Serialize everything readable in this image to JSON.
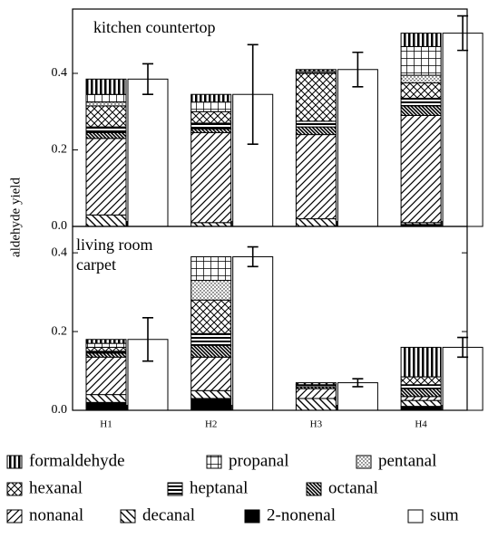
{
  "chart_data": [
    {
      "type": "stacked-bar-with-sum",
      "label_lines": [
        "kitchen countertop"
      ],
      "y_label": "aldehyde yield",
      "ylim": [
        0,
        0.568
      ],
      "yticks": [
        {
          "value": 0,
          "label": "0.0"
        },
        0.2,
        0.4
      ],
      "series": [
        {
          "name": "2-nonenal",
          "pattern": "solid",
          "values": [
            0,
            0,
            0,
            0.005
          ]
        },
        {
          "name": "decanal",
          "pattern": "backslash",
          "values": [
            0.03,
            0.01,
            0.02,
            0.005
          ]
        },
        {
          "name": "nonanal",
          "pattern": "slash",
          "values": [
            0.2,
            0.235,
            0.22,
            0.28
          ]
        },
        {
          "name": "octanal",
          "pattern": "dense-backslash",
          "values": [
            0.015,
            0.01,
            0.02,
            0.025
          ]
        },
        {
          "name": "heptanal",
          "pattern": "horizontal",
          "values": [
            0.015,
            0.015,
            0.015,
            0.02
          ]
        },
        {
          "name": "hexanal",
          "pattern": "crosshatch",
          "values": [
            0.055,
            0.03,
            0.125,
            0.04
          ]
        },
        {
          "name": "pentanal",
          "pattern": "dots",
          "values": [
            0.01,
            0,
            0,
            0.02
          ]
        },
        {
          "name": "propanal",
          "pattern": "grid",
          "values": [
            0.02,
            0.025,
            0.005,
            0.075
          ]
        },
        {
          "name": "formaldehyde",
          "pattern": "vertical",
          "values": [
            0.04,
            0.02,
            0.005,
            0.035
          ]
        }
      ],
      "sum": {
        "name": "sum",
        "color": "#ffffff",
        "values": [
          0.385,
          0.345,
          0.41,
          0.505
        ],
        "errors": [
          0.04,
          0.13,
          0.045,
          0.045
        ]
      }
    },
    {
      "type": "stacked-bar-with-sum",
      "label_lines": [
        "living room",
        "carpet"
      ],
      "ylim": [
        0,
        0.467
      ],
      "yticks": [
        {
          "value": 0,
          "label": "0.0"
        },
        0.2,
        0.4
      ],
      "categories": [
        "H1",
        "H2",
        "H3",
        "H4"
      ],
      "series": [
        {
          "values": [
            0.02,
            0.03,
            0,
            0.01
          ]
        },
        {
          "values": [
            0.02,
            0.02,
            0.03,
            0.015
          ]
        },
        {
          "values": [
            0.095,
            0.085,
            0.025,
            0.01
          ]
        },
        {
          "values": [
            0.01,
            0.03,
            0.005,
            0.02
          ]
        },
        {
          "values": [
            0.005,
            0.03,
            0.005,
            0.01
          ]
        },
        {
          "values": [
            0.01,
            0.085,
            0.005,
            0.02
          ]
        },
        {
          "values": [
            0,
            0.05,
            0,
            0
          ]
        },
        {
          "values": [
            0.01,
            0.06,
            0,
            0
          ]
        },
        {
          "values": [
            0.01,
            0,
            0,
            0.075
          ]
        }
      ],
      "sum": {
        "values": [
          0.18,
          0.39,
          0.07,
          0.16
        ],
        "errors": [
          0.055,
          0.025,
          0.01,
          0.025
        ]
      }
    }
  ]
}
